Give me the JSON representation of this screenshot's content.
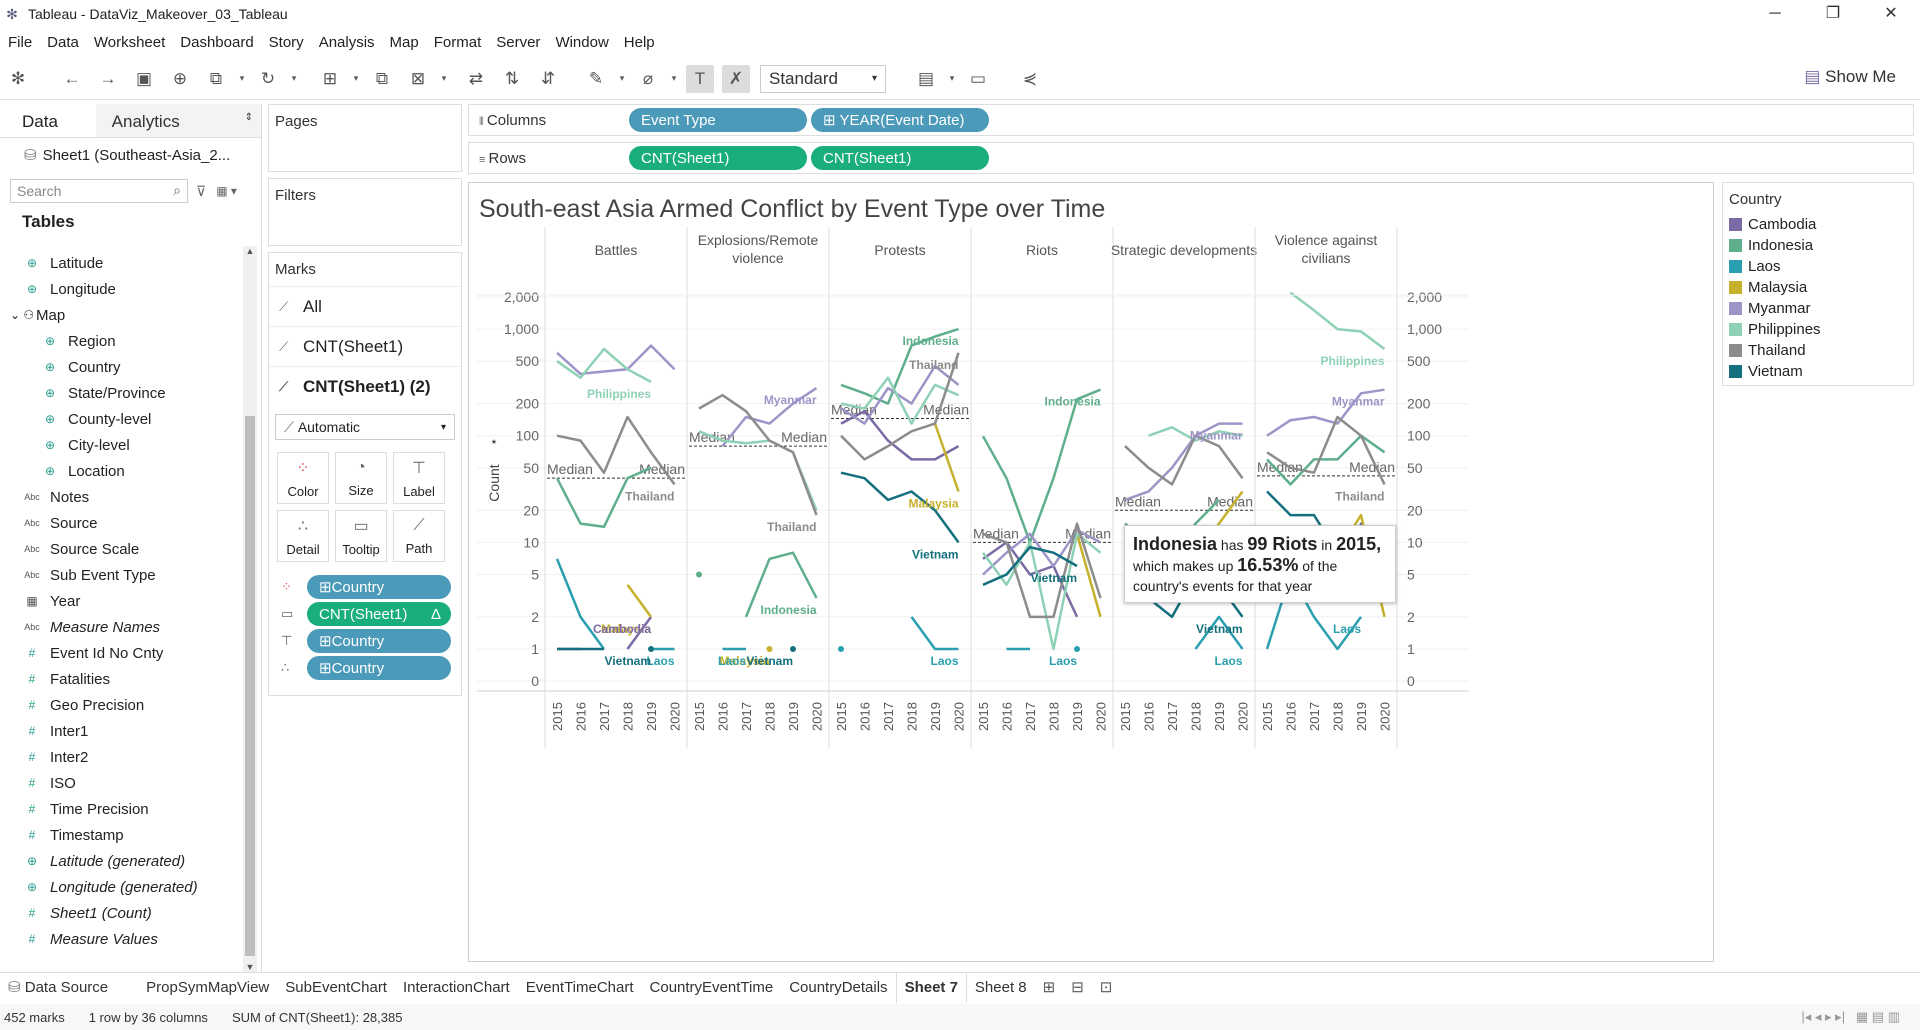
{
  "window": {
    "title": "Tableau - DataViz_Makeover_03_Tableau"
  },
  "menu": [
    "File",
    "Data",
    "Worksheet",
    "Dashboard",
    "Story",
    "Analysis",
    "Map",
    "Format",
    "Server",
    "Window",
    "Help"
  ],
  "toolbar": {
    "standard": "Standard",
    "show_me": "Show Me"
  },
  "left": {
    "tab_data": "Data",
    "tab_analytics": "Analytics",
    "datasource": "Sheet1 (Southeast-Asia_2...",
    "search_placeholder": "Search",
    "tables_heading": "Tables",
    "fields": [
      {
        "name": "Latitude",
        "type": "geo",
        "indent": 0
      },
      {
        "name": "Longitude",
        "type": "geo",
        "indent": 0
      },
      {
        "name": "Map",
        "type": "hier",
        "indent": 0
      },
      {
        "name": "Region",
        "type": "geo",
        "indent": 1
      },
      {
        "name": "Country",
        "type": "geo",
        "indent": 1
      },
      {
        "name": "State/Province",
        "type": "geo",
        "indent": 1
      },
      {
        "name": "County-level",
        "type": "geo",
        "indent": 1
      },
      {
        "name": "City-level",
        "type": "geo",
        "indent": 1
      },
      {
        "name": "Location",
        "type": "geo",
        "indent": 1
      },
      {
        "name": "Notes",
        "type": "abc",
        "indent": 0
      },
      {
        "name": "Source",
        "type": "abc",
        "indent": 0
      },
      {
        "name": "Source Scale",
        "type": "abc",
        "indent": 0
      },
      {
        "name": "Sub Event Type",
        "type": "abc",
        "indent": 0
      },
      {
        "name": "Year",
        "type": "cal",
        "indent": 0
      },
      {
        "name": "Measure Names",
        "type": "abc",
        "indent": 0,
        "italic": true
      },
      {
        "name": "Event Id No Cnty",
        "type": "num",
        "indent": 0
      },
      {
        "name": "Fatalities",
        "type": "num",
        "indent": 0
      },
      {
        "name": "Geo Precision",
        "type": "num",
        "indent": 0
      },
      {
        "name": "Inter1",
        "type": "num",
        "indent": 0
      },
      {
        "name": "Inter2",
        "type": "num",
        "indent": 0
      },
      {
        "name": "ISO",
        "type": "num",
        "indent": 0
      },
      {
        "name": "Time Precision",
        "type": "num",
        "indent": 0
      },
      {
        "name": "Timestamp",
        "type": "num",
        "indent": 0
      },
      {
        "name": "Latitude (generated)",
        "type": "geo",
        "indent": 0,
        "italic": true
      },
      {
        "name": "Longitude (generated)",
        "type": "geo",
        "indent": 0,
        "italic": true
      },
      {
        "name": "Sheet1 (Count)",
        "type": "num",
        "indent": 0,
        "italic": true
      },
      {
        "name": "Measure Values",
        "type": "num",
        "indent": 0,
        "italic": true
      }
    ]
  },
  "cards": {
    "pages": "Pages",
    "filters": "Filters",
    "marks": "Marks",
    "marks_rows": [
      "All",
      "CNT(Sheet1)",
      "CNT(Sheet1) (2)"
    ],
    "mark_type": "Automatic",
    "buttons": [
      "Color",
      "Size",
      "Label",
      "Detail",
      "Tooltip",
      "Path"
    ],
    "pills": [
      {
        "label": "Country",
        "color": "blue",
        "icon": "color"
      },
      {
        "label": "CNT(Sheet1)",
        "color": "green",
        "icon": "tooltip",
        "suffix": "Δ"
      },
      {
        "label": "Country",
        "color": "blue",
        "icon": "label"
      },
      {
        "label": "Country",
        "color": "blue",
        "icon": "detail"
      }
    ]
  },
  "shelves": {
    "columns_label": "Columns",
    "rows_label": "Rows",
    "columns": [
      "Event Type",
      "⊞ YEAR(Event Date)"
    ],
    "rows": [
      "CNT(Sheet1)",
      "CNT(Sheet1)"
    ]
  },
  "viz": {
    "title": "South-east Asia Armed Conflict by Event Type over Time",
    "tooltip": {
      "country": "Indonesia",
      "has": "has",
      "count": "99 Riots",
      "in": "in",
      "year": "2015,",
      "line2a": "which makes up",
      "pct": "16.53%",
      "line2b": "of the",
      "line3": "country's events for that year"
    }
  },
  "legend": {
    "title": "Country",
    "items": [
      {
        "name": "Cambodia",
        "color": "#7b6aa6"
      },
      {
        "name": "Indonesia",
        "color": "#5fae8c"
      },
      {
        "name": "Laos",
        "color": "#2a9fb0"
      },
      {
        "name": "Malaysia",
        "color": "#c6b02c"
      },
      {
        "name": "Myanmar",
        "color": "#9d94c8"
      },
      {
        "name": "Philippines",
        "color": "#8fd1b5"
      },
      {
        "name": "Thailand",
        "color": "#8c8c8c"
      },
      {
        "name": "Vietnam",
        "color": "#146f7e"
      }
    ]
  },
  "chart_data": {
    "type": "line",
    "title": "South-east Asia Armed Conflict by Event Type over Time",
    "ylabel": "Count",
    "yscale": "log",
    "y_ticks": [
      "0",
      "1",
      "2",
      "5",
      "10",
      "20",
      "50",
      "100",
      "200",
      "500",
      "1,000",
      "2,000"
    ],
    "panels": [
      "Battles",
      "Explosions/Remote violence",
      "Protests",
      "Riots",
      "Strategic developments",
      "Violence against civilians"
    ],
    "x": [
      "2015",
      "2016",
      "2017",
      "2018",
      "2019",
      "2020"
    ],
    "median_label": "Median",
    "medians": [
      40,
      80,
      145,
      10,
      20,
      42
    ],
    "series": {
      "Battles": {
        "Cambodia": [
          1,
          1,
          null,
          1,
          2,
          null
        ],
        "Indonesia": [
          40,
          15,
          14,
          40,
          50,
          null
        ],
        "Laos": [
          7,
          2,
          1,
          null,
          1,
          1
        ],
        "Malaysia": [
          null,
          null,
          null,
          4,
          2,
          null
        ],
        "Myanmar": [
          600,
          380,
          400,
          420,
          700,
          420
        ],
        "Philippines": [
          500,
          350,
          650,
          420,
          320,
          null
        ],
        "Thailand": [
          100,
          90,
          45,
          150,
          70,
          35
        ],
        "Vietnam": [
          1,
          1,
          1,
          null,
          1,
          null
        ]
      },
      "Explosions/Remote violence": {
        "Indonesia": [
          5,
          null,
          2,
          7,
          8,
          3
        ],
        "Laos": [
          null,
          1,
          1,
          null,
          null,
          null
        ],
        "Malaysia": [
          null,
          null,
          null,
          1,
          null,
          null
        ],
        "Myanmar": [
          null,
          80,
          150,
          130,
          200,
          280
        ],
        "Philippines": [
          110,
          90,
          85,
          90,
          70,
          20
        ],
        "Thailand": [
          180,
          240,
          170,
          90,
          70,
          18
        ],
        "Vietnam": [
          null,
          null,
          null,
          null,
          1,
          null
        ]
      },
      "Protests": {
        "Cambodia": [
          130,
          170,
          90,
          60,
          60,
          80
        ],
        "Indonesia": [
          300,
          250,
          200,
          700,
          850,
          1000
        ],
        "Laos": [
          1,
          null,
          null,
          2,
          1,
          1
        ],
        "Malaysia": [
          null,
          null,
          null,
          null,
          130,
          30
        ],
        "Myanmar": [
          180,
          130,
          280,
          200,
          450,
          300
        ],
        "Philippines": [
          200,
          180,
          350,
          130,
          300,
          240
        ],
        "Thailand": [
          100,
          60,
          80,
          110,
          130,
          600
        ],
        "Vietnam": [
          45,
          40,
          25,
          30,
          20,
          10
        ]
      },
      "Riots": {
        "Cambodia": [
          7,
          10,
          5,
          6,
          2,
          null
        ],
        "Indonesia": [
          99,
          40,
          10,
          40,
          220,
          270
        ],
        "Laos": [
          null,
          1,
          1,
          null,
          1,
          null
        ],
        "Malaysia": [
          null,
          null,
          null,
          null,
          12,
          2
        ],
        "Myanmar": [
          5,
          8,
          12,
          6,
          13,
          10
        ],
        "Philippines": [
          8,
          4,
          10,
          1,
          12,
          8
        ],
        "Thailand": [
          12,
          10,
          2,
          2,
          15,
          3
        ],
        "Vietnam": [
          4,
          5,
          9,
          8,
          6,
          null
        ]
      },
      "Strategic developments": {
        "Cambodia": [
          8,
          10,
          4,
          7,
          8,
          13
        ],
        "Indonesia": [
          15,
          10,
          8,
          15,
          25,
          null
        ],
        "Laos": [
          null,
          null,
          null,
          1,
          2,
          1
        ],
        "Malaysia": [
          null,
          null,
          null,
          8,
          15,
          30
        ],
        "Myanmar": [
          25,
          30,
          50,
          100,
          130,
          130
        ],
        "Philippines": [
          null,
          100,
          120,
          90,
          110,
          100
        ],
        "Thailand": [
          80,
          50,
          35,
          100,
          80,
          40
        ],
        "Vietnam": [
          null,
          3,
          2,
          5,
          4,
          2
        ]
      },
      "Violence against civilians": {
        "Cambodia": [
          4,
          4,
          3,
          3,
          15,
          10
        ],
        "Indonesia": [
          60,
          35,
          60,
          60,
          100,
          70
        ],
        "Laos": [
          1,
          5,
          2,
          1,
          2,
          null
        ],
        "Malaysia": [
          null,
          null,
          null,
          8,
          18,
          2
        ],
        "Myanmar": [
          100,
          140,
          150,
          130,
          250,
          270
        ],
        "Philippines": [
          null,
          2200,
          1500,
          1000,
          950,
          650
        ],
        "Thailand": [
          70,
          50,
          45,
          150,
          100,
          35
        ],
        "Vietnam": [
          30,
          18,
          18,
          8,
          13,
          6
        ]
      }
    },
    "annotations": [
      {
        "panel": 0,
        "text": "Philippines",
        "color": "#8fd1b5"
      },
      {
        "panel": 0,
        "text": "Thailand",
        "color": "#8c8c8c"
      },
      {
        "panel": 0,
        "text": "Malaysia",
        "color": "#c6b02c"
      },
      {
        "panel": 0,
        "text": "Cambodia",
        "color": "#7b6aa6"
      },
      {
        "panel": 0,
        "text": "Laos",
        "color": "#2a9fb0"
      },
      {
        "panel": 0,
        "text": "Vietnam",
        "color": "#146f7e"
      },
      {
        "panel": 1,
        "text": "Myanmar",
        "color": "#9d94c8"
      },
      {
        "panel": 1,
        "text": "Thailand",
        "color": "#8c8c8c"
      },
      {
        "panel": 1,
        "text": "Indonesia",
        "color": "#5fae8c"
      },
      {
        "panel": 1,
        "text": "Malaysia",
        "color": "#c6b02c"
      },
      {
        "panel": 1,
        "text": "Laos",
        "color": "#2a9fb0"
      },
      {
        "panel": 1,
        "text": "Vietnam",
        "color": "#146f7e"
      },
      {
        "panel": 2,
        "text": "Indonesia",
        "color": "#5fae8c"
      },
      {
        "panel": 2,
        "text": "Thailand",
        "color": "#8c8c8c"
      },
      {
        "panel": 2,
        "text": "Malaysia",
        "color": "#c6b02c"
      },
      {
        "panel": 2,
        "text": "Vietnam",
        "color": "#146f7e"
      },
      {
        "panel": 2,
        "text": "Laos",
        "color": "#2a9fb0"
      },
      {
        "panel": 3,
        "text": "Indonesia",
        "color": "#5fae8c"
      },
      {
        "panel": 3,
        "text": "Laos",
        "color": "#2a9fb0"
      },
      {
        "panel": 3,
        "text": "Vietnam",
        "color": "#146f7e"
      },
      {
        "panel": 4,
        "text": "Myanmar",
        "color": "#9d94c8"
      },
      {
        "panel": 4,
        "text": "Vietnam",
        "color": "#146f7e"
      },
      {
        "panel": 4,
        "text": "Laos",
        "color": "#2a9fb0"
      },
      {
        "panel": 5,
        "text": "Philippines",
        "color": "#8fd1b5"
      },
      {
        "panel": 5,
        "text": "Myanmar",
        "color": "#9d94c8"
      },
      {
        "panel": 5,
        "text": "Thailand",
        "color": "#8c8c8c"
      },
      {
        "panel": 5,
        "text": "Laos",
        "color": "#2a9fb0"
      }
    ]
  },
  "tabs": [
    "Data Source",
    "PropSymMapView",
    "SubEventChart",
    "InteractionChart",
    "EventTimeChart",
    "CountryEventTime",
    "CountryDetails",
    "Sheet 7",
    "Sheet 8"
  ],
  "active_tab": "Sheet 7",
  "status": {
    "marks": "452 marks",
    "dims": "1 row by 36 columns",
    "sum": "SUM of CNT(Sheet1): 28,385"
  }
}
